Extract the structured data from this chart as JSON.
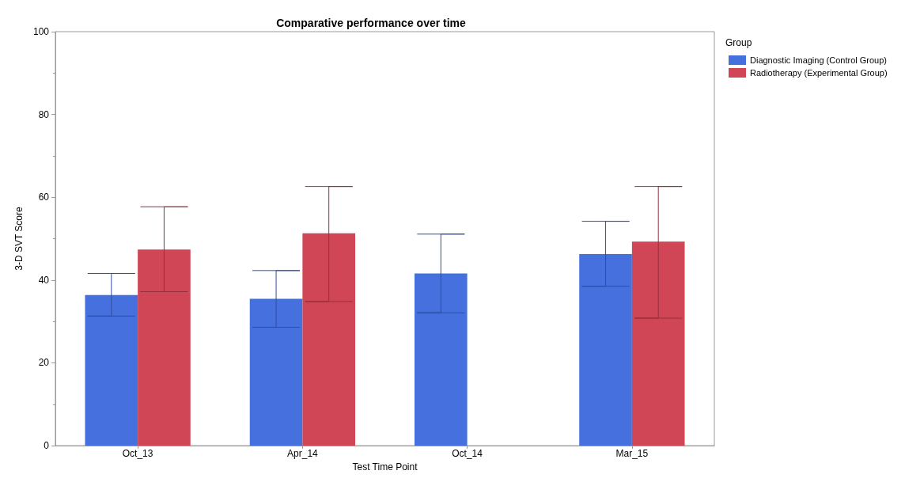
{
  "chart_data": {
    "type": "bar",
    "title": "Comparative performance over time",
    "xlabel": "Test Time Point",
    "ylabel": "3-D SVT Score",
    "legend_title": "Group",
    "categories": [
      "Oct_13",
      "Apr_14",
      "Oct_14",
      "Mar_15"
    ],
    "series": [
      {
        "name": "Diagnostic Imaging (Control Group)",
        "color": "#4570dd",
        "values": [
          36.4,
          35.5,
          41.6,
          46.3
        ],
        "errors": [
          [
            31.3,
            41.6
          ],
          [
            28.6,
            42.3
          ],
          [
            32.1,
            51.1
          ],
          [
            38.5,
            54.2
          ]
        ]
      },
      {
        "name": "Radiotherapy (Experimental Group)",
        "color": "#d04656",
        "values": [
          47.4,
          51.3,
          null,
          49.3
        ],
        "errors": [
          [
            37.2,
            57.7
          ],
          [
            34.8,
            62.6
          ],
          null,
          [
            30.8,
            62.6
          ]
        ]
      }
    ],
    "ylim": [
      0,
      100
    ],
    "yticks": [
      0,
      20,
      40,
      60,
      80,
      100
    ],
    "grid": false,
    "legend": "top right"
  }
}
